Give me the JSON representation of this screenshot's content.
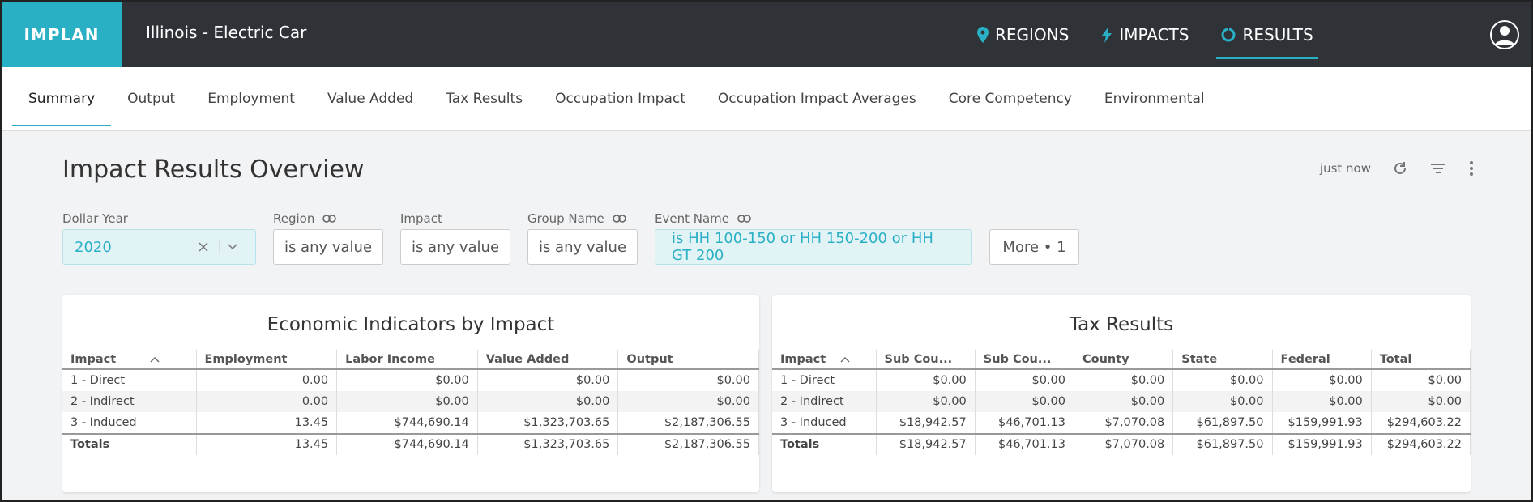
{
  "header": {
    "logo": "IMPLAN",
    "project": "Illinois - Electric Car",
    "nav": [
      "REGIONS",
      "IMPACTS",
      "RESULTS"
    ]
  },
  "tabs": [
    "Summary",
    "Output",
    "Employment",
    "Value Added",
    "Tax Results",
    "Occupation Impact",
    "Occupation Impact Averages",
    "Core Competency",
    "Environmental"
  ],
  "page": {
    "title": "Impact Results Overview",
    "updated": "just now"
  },
  "filters": [
    {
      "label": "Dollar Year",
      "value": "2020"
    },
    {
      "label": "Region",
      "value": "is any value"
    },
    {
      "label": "Impact",
      "value": "is any value"
    },
    {
      "label": "Group Name",
      "value": "is any value"
    },
    {
      "label": "Event Name",
      "value": "is HH 100-150 or HH 150-200 or HH GT 200"
    }
  ],
  "more": "More • 1",
  "tables": [
    {
      "title": "Economic Indicators by Impact",
      "columns": [
        "Impact",
        "Employment",
        "Labor Income",
        "Value Added",
        "Output"
      ],
      "rows": [
        [
          "1 - Direct",
          "0.00",
          "$0.00",
          "$0.00",
          "$0.00"
        ],
        [
          "2 - Indirect",
          "0.00",
          "$0.00",
          "$0.00",
          "$0.00"
        ],
        [
          "3 - Induced",
          "13.45",
          "$744,690.14",
          "$1,323,703.65",
          "$2,187,306.55"
        ],
        [
          "Totals",
          "13.45",
          "$744,690.14",
          "$1,323,703.65",
          "$2,187,306.55"
        ]
      ]
    },
    {
      "title": "Tax Results",
      "columns": [
        "Impact",
        "Sub Cou...",
        "Sub Cou...",
        "County",
        "State",
        "Federal",
        "Total"
      ],
      "rows": [
        [
          "1 - Direct",
          "$0.00",
          "$0.00",
          "$0.00",
          "$0.00",
          "$0.00",
          "$0.00"
        ],
        [
          "2 - Indirect",
          "$0.00",
          "$0.00",
          "$0.00",
          "$0.00",
          "$0.00",
          "$0.00"
        ],
        [
          "3 - Induced",
          "$18,942.57",
          "$46,701.13",
          "$7,070.08",
          "$61,897.50",
          "$159,991.93",
          "$294,603.22"
        ],
        [
          "Totals",
          "$18,942.57",
          "$46,701.13",
          "$7,070.08",
          "$61,897.50",
          "$159,991.93",
          "$294,603.22"
        ]
      ]
    }
  ]
}
